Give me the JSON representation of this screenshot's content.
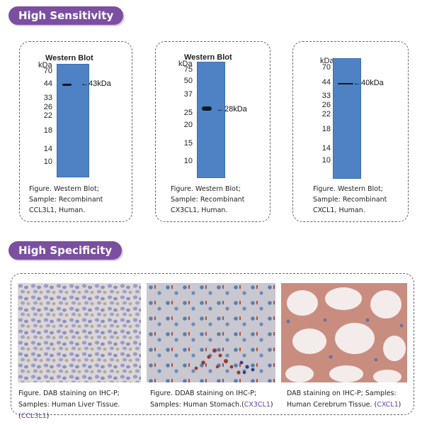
{
  "sections": {
    "sensitivity_title": "High Sensitivity",
    "specificity_title": "High Specificity"
  },
  "blots": [
    {
      "title": "Western Blot",
      "unit": "kDa",
      "markers": [
        "70",
        "44",
        "33",
        "26",
        "22",
        "18",
        "14",
        "10"
      ],
      "band_label": "43kDa",
      "caption_line1": "Figure. Western Blot;",
      "caption_line2": "Sample: Recombinant",
      "caption_line3": "CCL3L1, Human."
    },
    {
      "title": "Western Blot",
      "unit": "kDa",
      "markers": [
        "75",
        "50",
        "37",
        "25",
        "20",
        "15",
        "10"
      ],
      "band_label": "28kDa",
      "caption_line1": "Figure. Western Blot;",
      "caption_line2": "Sample: Recombinant",
      "caption_line3": "CX3CL1, Human."
    },
    {
      "title": "",
      "unit": "kDa",
      "markers": [
        "70",
        "44",
        "33",
        "26",
        "22",
        "18",
        "14",
        "10"
      ],
      "band_label": "40kDa",
      "caption_line1": "Figure. Western Blot;",
      "caption_line2": "Sample: Recombinant",
      "caption_line3": "CXCL1, Human."
    }
  ],
  "ihc": [
    {
      "line1": "Figure. DAB staining on IHC-P;",
      "line2": "Samples: Human Liver Tissue. (",
      "tag": "CCL3L1",
      "close": ")"
    },
    {
      "line1": "Figure. DDAB staining on IHC-P;",
      "line2": "Samples: Human Stomach.(",
      "tag": "CX3CL1",
      "close": ")"
    },
    {
      "line1": "DAB staining on IHC-P; Samples:",
      "line2": "Human Cerebrum Tissue. (",
      "tag": "CXCL1",
      "close": ")"
    }
  ],
  "colors": {
    "accent": "#7b4fa0",
    "lane": "#4f82c4",
    "tag": "#6c3fa0"
  }
}
